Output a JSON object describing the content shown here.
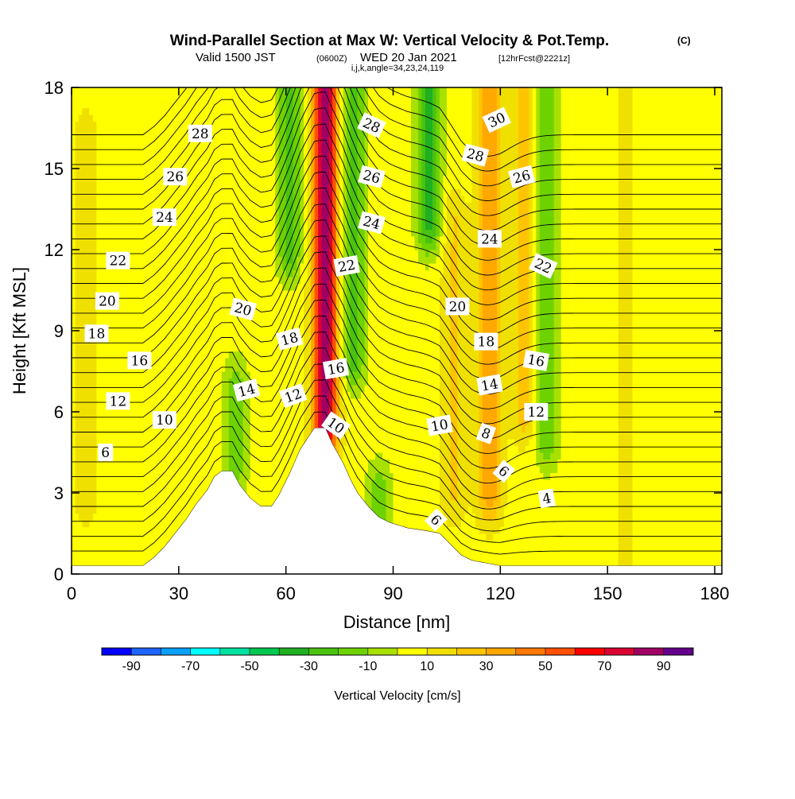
{
  "header": {
    "title": "Wind-Parallel Section at Max W: Vertical Velocity & Pot.Temp.",
    "copyright": "(C)",
    "valid_prefix": "Valid 1500 JST",
    "valid_z": "(0600Z)",
    "valid_date": "WED 20 Jan 2021",
    "valid_fcst": "[12hrFcst@2221z]",
    "indices": "i,j,k,angle=34,23,24,119"
  },
  "chart_data": {
    "type": "heatmap",
    "xlabel": "Distance [nm]",
    "ylabel": "Height [Kft MSL]",
    "xlim": [
      0,
      182
    ],
    "ylim": [
      0,
      18
    ],
    "x_ticks": [
      0,
      30,
      60,
      90,
      120,
      150,
      180
    ],
    "y_ticks": [
      0,
      3,
      6,
      9,
      12,
      15,
      18
    ],
    "colorbar": {
      "label": "Vertical Velocity [cm/s]",
      "levels": [
        -100,
        -90,
        -80,
        -70,
        -60,
        -50,
        -40,
        -30,
        -20,
        -10,
        0,
        10,
        20,
        30,
        40,
        50,
        60,
        70,
        80,
        90,
        100
      ],
      "tick_labels": [
        "-90",
        "-70",
        "-50",
        "-30",
        "-10",
        "10",
        "30",
        "50",
        "70",
        "90"
      ],
      "tick_values": [
        -90,
        -70,
        -50,
        -30,
        -10,
        10,
        30,
        50,
        70,
        90
      ],
      "colors": [
        "#0000ff",
        "#1e64ff",
        "#0aa0ff",
        "#00ffff",
        "#00e1a0",
        "#00c850",
        "#20b020",
        "#4ac210",
        "#6ed200",
        "#a8e000",
        "#ffff00",
        "#f0e000",
        "#ffc400",
        "#ffa800",
        "#ff7800",
        "#ff5000",
        "#ff0000",
        "#dc0032",
        "#a00064",
        "#64008c"
      ]
    },
    "terrain_profile": [
      [
        0,
        0.3
      ],
      [
        15,
        0.3
      ],
      [
        20,
        0.3
      ],
      [
        23,
        0.6
      ],
      [
        26,
        1.0
      ],
      [
        29,
        1.5
      ],
      [
        32,
        2.0
      ],
      [
        35,
        2.6
      ],
      [
        38,
        3.1
      ],
      [
        40,
        3.6
      ],
      [
        42,
        3.8
      ],
      [
        45,
        3.8
      ],
      [
        47,
        3.3
      ],
      [
        50,
        2.8
      ],
      [
        53,
        2.5
      ],
      [
        56,
        2.5
      ],
      [
        58,
        2.9
      ],
      [
        61,
        3.7
      ],
      [
        64,
        4.6
      ],
      [
        66,
        5.0
      ],
      [
        68,
        5.4
      ],
      [
        71,
        5.4
      ],
      [
        73,
        4.8
      ],
      [
        76,
        4.1
      ],
      [
        78,
        3.5
      ],
      [
        80,
        3.0
      ],
      [
        83,
        2.5
      ],
      [
        86,
        2.1
      ],
      [
        89,
        1.9
      ],
      [
        94,
        1.7
      ],
      [
        99,
        1.6
      ],
      [
        103,
        1.5
      ],
      [
        106,
        1.1
      ],
      [
        109,
        0.7
      ],
      [
        112,
        0.5
      ],
      [
        116,
        0.4
      ],
      [
        120,
        0.3
      ],
      [
        140,
        0.3
      ],
      [
        165,
        0.3
      ],
      [
        182,
        0.3
      ]
    ],
    "w_features": [
      {
        "x": 71,
        "z0": 5.5,
        "z1": 18,
        "w": 80
      },
      {
        "x": 117,
        "z0": 3,
        "z1": 18,
        "w": 30
      },
      {
        "x": 127,
        "z0": 6,
        "z1": 18,
        "w": 20
      },
      {
        "x": 107,
        "z0": 3,
        "z1": 13,
        "w": 15
      },
      {
        "x": 61,
        "z0": 12,
        "z1": 18,
        "w": -30
      },
      {
        "x": 79,
        "z0": 8,
        "z1": 18,
        "w": -30
      },
      {
        "x": 100,
        "z0": 13,
        "z1": 18,
        "w": -40
      },
      {
        "x": 133,
        "z0": 5,
        "z1": 18,
        "w": -25
      },
      {
        "x": 46,
        "z0": 4,
        "z1": 7,
        "w": -20
      },
      {
        "x": 86,
        "z0": 1.5,
        "z1": 3,
        "w": -25
      },
      {
        "x": 4,
        "z0": 3,
        "z1": 16,
        "w": 10
      },
      {
        "x": 155,
        "z0": 0.5,
        "z1": 18,
        "w": 5
      }
    ],
    "theta_contours": {
      "min": 2,
      "max": 31,
      "step": 1
    },
    "contour_labels": [
      {
        "text": "28",
        "x": 36,
        "z": 16.3,
        "angle": 0
      },
      {
        "text": "26",
        "x": 29,
        "z": 14.7,
        "angle": 0
      },
      {
        "text": "24",
        "x": 26,
        "z": 13.2,
        "angle": 0
      },
      {
        "text": "22",
        "x": 13,
        "z": 11.6,
        "angle": 0
      },
      {
        "text": "20",
        "x": 10,
        "z": 10.1,
        "angle": 0
      },
      {
        "text": "18",
        "x": 7,
        "z": 8.9,
        "angle": 0
      },
      {
        "text": "16",
        "x": 19,
        "z": 7.9,
        "angle": 0
      },
      {
        "text": "12",
        "x": 13,
        "z": 6.4,
        "angle": 0
      },
      {
        "text": "10",
        "x": 26,
        "z": 5.7,
        "angle": 0
      },
      {
        "text": "6",
        "x": 9.5,
        "z": 4.5,
        "angle": 0
      },
      {
        "text": "20",
        "x": 48,
        "z": 9.8,
        "angle": 15
      },
      {
        "text": "18",
        "x": 61,
        "z": 8.7,
        "angle": -15
      },
      {
        "text": "14",
        "x": 49,
        "z": 6.8,
        "angle": -15
      },
      {
        "text": "12",
        "x": 62,
        "z": 6.6,
        "angle": -20
      },
      {
        "text": "16",
        "x": 74,
        "z": 7.6,
        "angle": -10
      },
      {
        "text": "10",
        "x": 74,
        "z": 5.5,
        "angle": 35
      },
      {
        "text": "28",
        "x": 84,
        "z": 16.6,
        "angle": 25
      },
      {
        "text": "26",
        "x": 84,
        "z": 14.7,
        "angle": 15
      },
      {
        "text": "24",
        "x": 84,
        "z": 13.0,
        "angle": 15
      },
      {
        "text": "22",
        "x": 77,
        "z": 11.4,
        "angle": -10
      },
      {
        "text": "20",
        "x": 108,
        "z": 9.9,
        "angle": 0
      },
      {
        "text": "18",
        "x": 116,
        "z": 8.6,
        "angle": 0
      },
      {
        "text": "14",
        "x": 117,
        "z": 7.0,
        "angle": -10
      },
      {
        "text": "10",
        "x": 103,
        "z": 5.5,
        "angle": -10
      },
      {
        "text": "8",
        "x": 116,
        "z": 5.2,
        "angle": 20
      },
      {
        "text": "6",
        "x": 121,
        "z": 3.8,
        "angle": 40
      },
      {
        "text": "6",
        "x": 102,
        "z": 2.0,
        "angle": 45
      },
      {
        "text": "4",
        "x": 133,
        "z": 2.8,
        "angle": -10
      },
      {
        "text": "12",
        "x": 130,
        "z": 6.0,
        "angle": 0
      },
      {
        "text": "16",
        "x": 130,
        "z": 7.9,
        "angle": 10
      },
      {
        "text": "24",
        "x": 117,
        "z": 12.4,
        "angle": 0
      },
      {
        "text": "22",
        "x": 132,
        "z": 11.4,
        "angle": 25
      },
      {
        "text": "28",
        "x": 113,
        "z": 15.5,
        "angle": 15
      },
      {
        "text": "26",
        "x": 126,
        "z": 14.7,
        "angle": -15
      },
      {
        "text": "30",
        "x": 119,
        "z": 16.8,
        "angle": -25
      }
    ]
  }
}
